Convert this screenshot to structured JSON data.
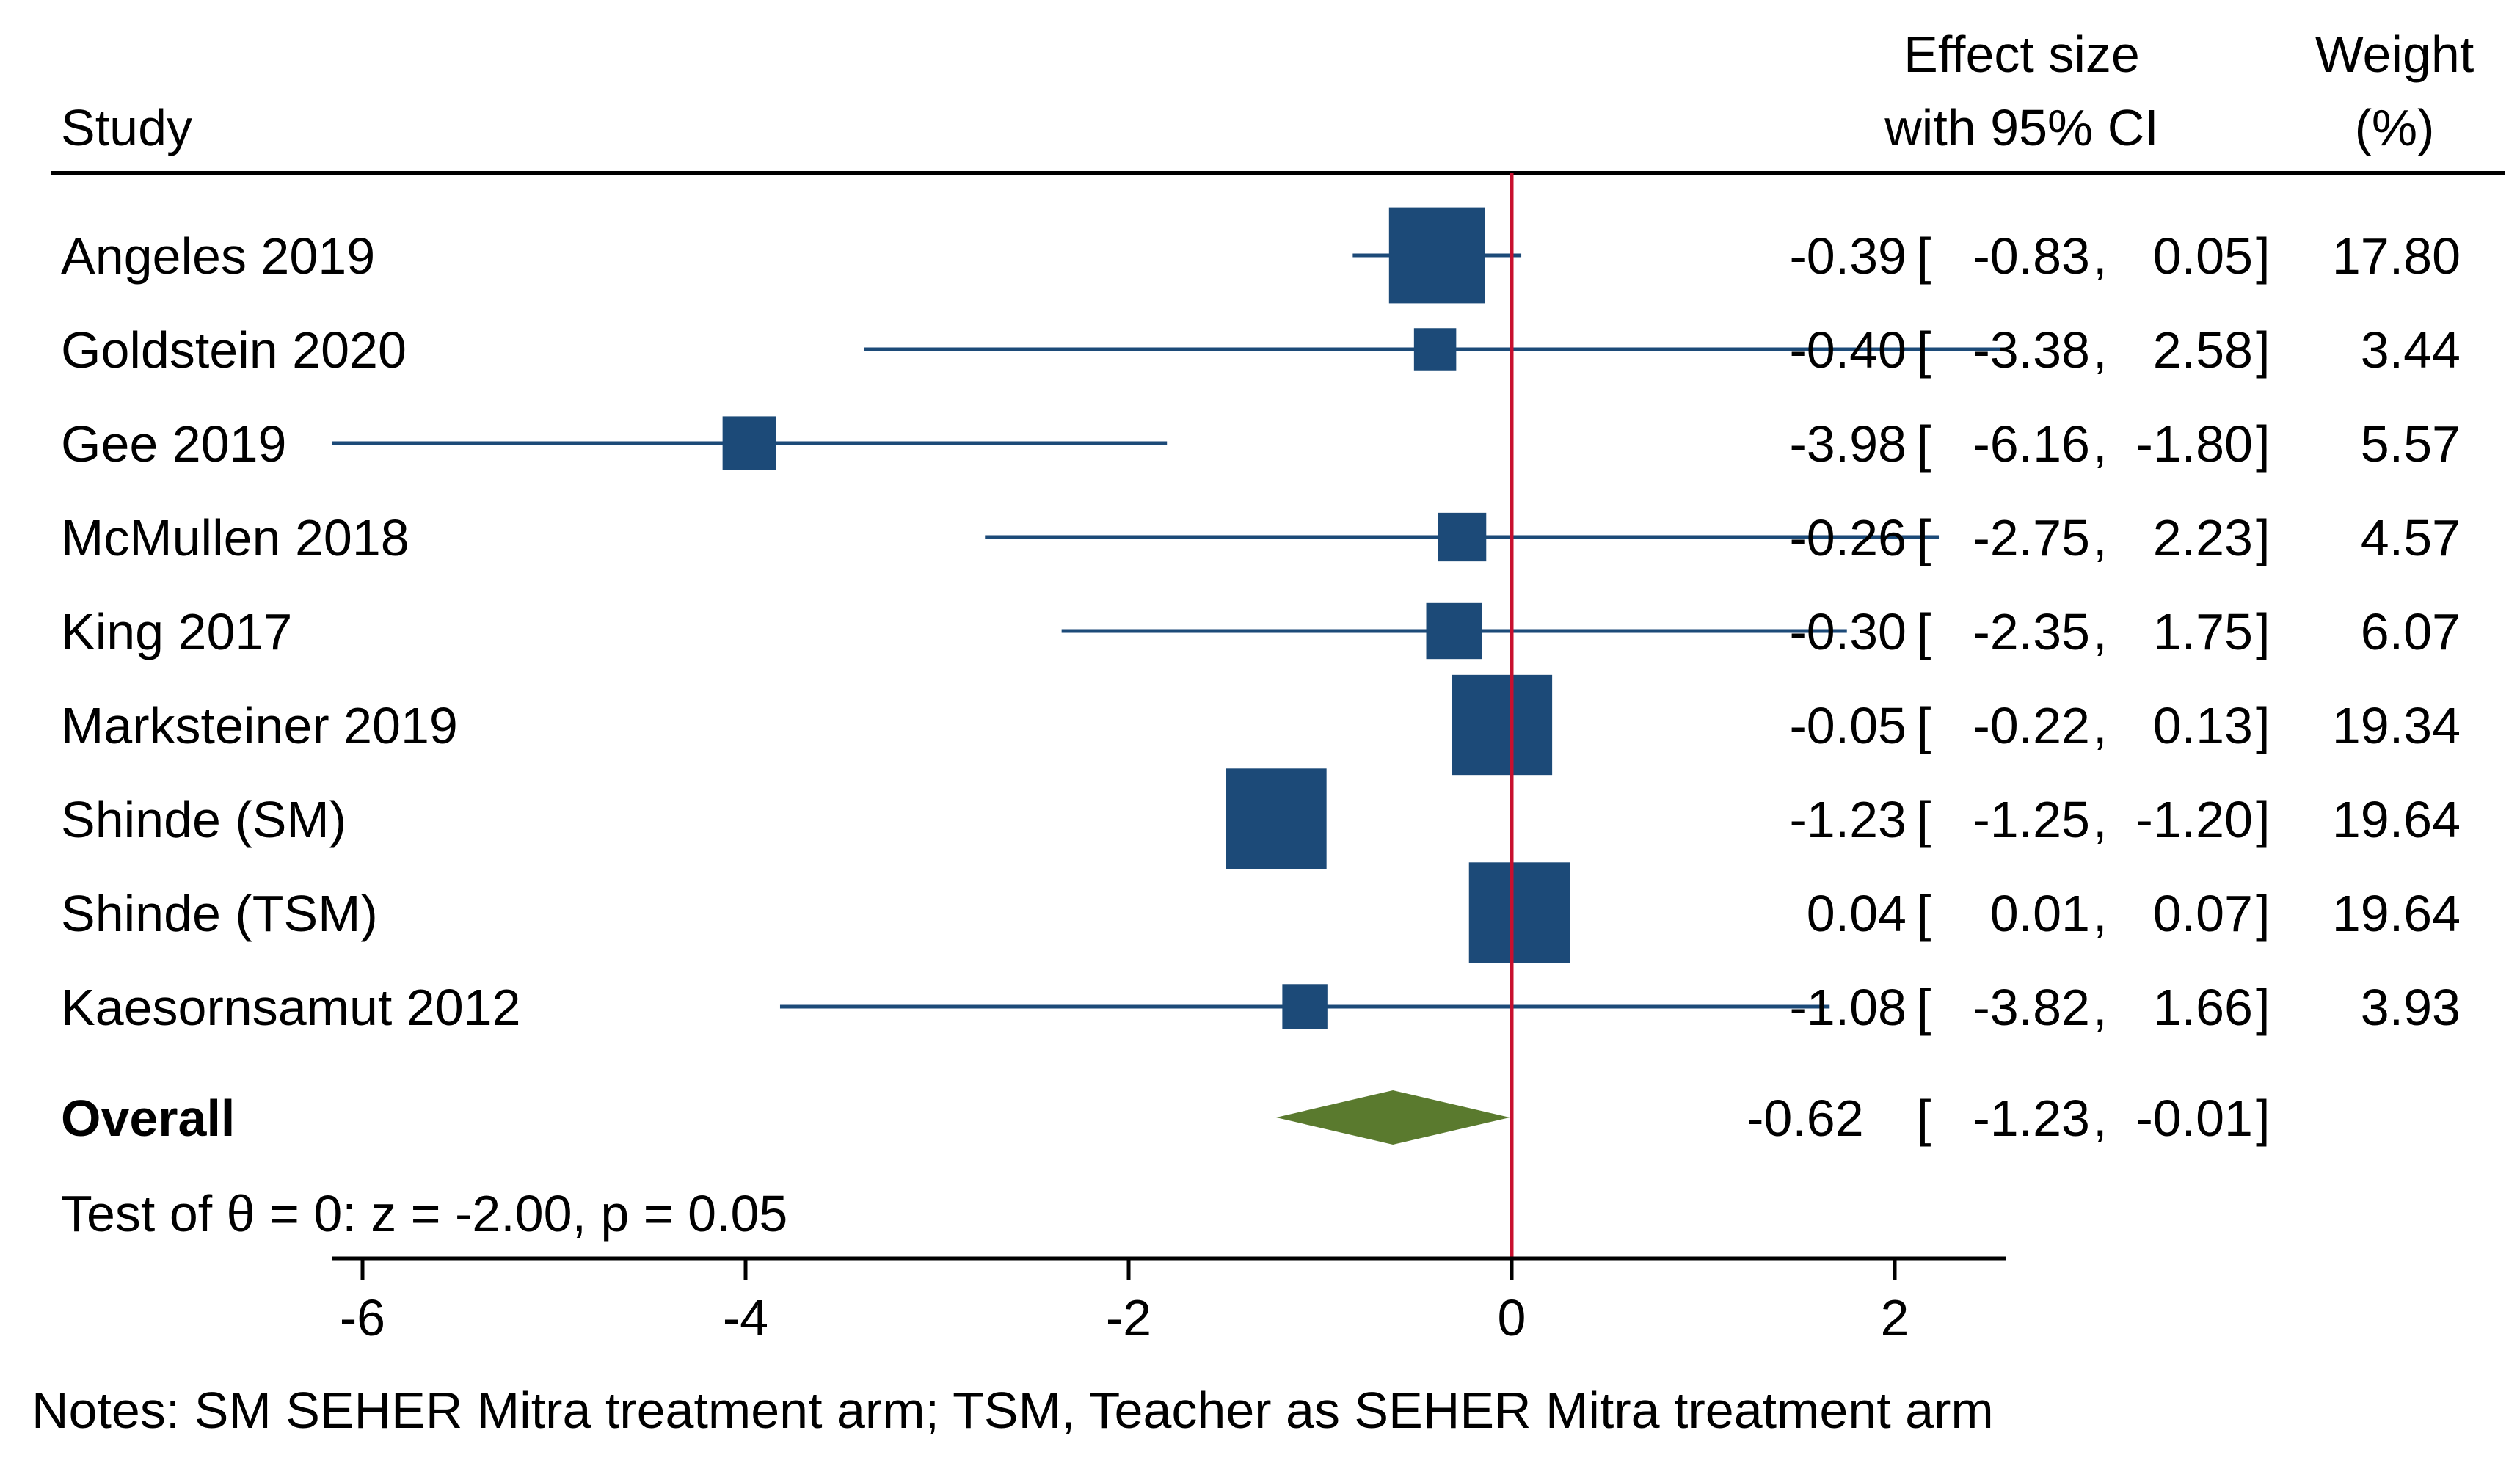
{
  "chart_data": {
    "type": "forest",
    "headers": {
      "study": "Study",
      "effect_line1": "Effect size",
      "effect_line2": "with 95% CI",
      "weight_line1": "Weight",
      "weight_line2": "(%)"
    },
    "studies": [
      {
        "name": "Angeles 2019",
        "es": -0.39,
        "lo": -0.83,
        "hi": 0.05,
        "weight": 17.8,
        "es_text": "-0.39",
        "lo_text": "-0.83",
        "hi_text": "0.05",
        "weight_text": "17.80"
      },
      {
        "name": "Goldstein 2020",
        "es": -0.4,
        "lo": -3.38,
        "hi": 2.58,
        "weight": 3.44,
        "es_text": "-0.40",
        "lo_text": "-3.38",
        "hi_text": "2.58",
        "weight_text": "3.44"
      },
      {
        "name": "Gee 2019",
        "es": -3.98,
        "lo": -6.16,
        "hi": -1.8,
        "weight": 5.57,
        "es_text": "-3.98",
        "lo_text": "-6.16",
        "hi_text": "-1.80",
        "weight_text": "5.57"
      },
      {
        "name": "McMullen 2018",
        "es": -0.26,
        "lo": -2.75,
        "hi": 2.23,
        "weight": 4.57,
        "es_text": "-0.26",
        "lo_text": "-2.75",
        "hi_text": "2.23",
        "weight_text": "4.57"
      },
      {
        "name": "King 2017",
        "es": -0.3,
        "lo": -2.35,
        "hi": 1.75,
        "weight": 6.07,
        "es_text": "-0.30",
        "lo_text": "-2.35",
        "hi_text": "1.75",
        "weight_text": "6.07"
      },
      {
        "name": "Marksteiner 2019",
        "es": -0.05,
        "lo": -0.22,
        "hi": 0.13,
        "weight": 19.34,
        "es_text": "-0.05",
        "lo_text": "-0.22",
        "hi_text": "0.13",
        "weight_text": "19.34"
      },
      {
        "name": "Shinde (SM)",
        "es": -1.23,
        "lo": -1.25,
        "hi": -1.2,
        "weight": 19.64,
        "es_text": "-1.23",
        "lo_text": "-1.25",
        "hi_text": "-1.20",
        "weight_text": "19.64"
      },
      {
        "name": "Shinde (TSM)",
        "es": 0.04,
        "lo": 0.01,
        "hi": 0.07,
        "weight": 19.64,
        "es_text": "0.04",
        "lo_text": "0.01",
        "hi_text": "0.07",
        "weight_text": "19.64"
      },
      {
        "name": "Kaesornsamut 2012",
        "es": -1.08,
        "lo": -3.82,
        "hi": 1.66,
        "weight": 3.93,
        "es_text": "-1.08",
        "lo_text": "-3.82",
        "hi_text": "1.66",
        "weight_text": "3.93"
      }
    ],
    "overall": {
      "name": "Overall",
      "es": -0.62,
      "lo": -1.23,
      "hi": -0.01,
      "es_text": "-0.62",
      "lo_text": "-1.23",
      "hi_text": "-0.01"
    },
    "test_text": "Test of θ = 0: z = -2.00, p = 0.05",
    "x_axis": {
      "ticks": [
        -6,
        -4,
        -2,
        0,
        2
      ],
      "tick_labels": [
        "-6",
        "-4",
        "-2",
        "0",
        "2"
      ],
      "range": [
        -6.16,
        2.58
      ],
      "null_line": 0
    },
    "notes": "Notes: SM SEHER Mitra treatment arm; TSM, Teacher as SEHER Mitra treatment arm",
    "colors": {
      "marker": "#1c4a78",
      "ci_line": "#1c4a78",
      "overall": "#5a7a2e",
      "null_line": "#c8102e",
      "axis": "#000000"
    }
  }
}
